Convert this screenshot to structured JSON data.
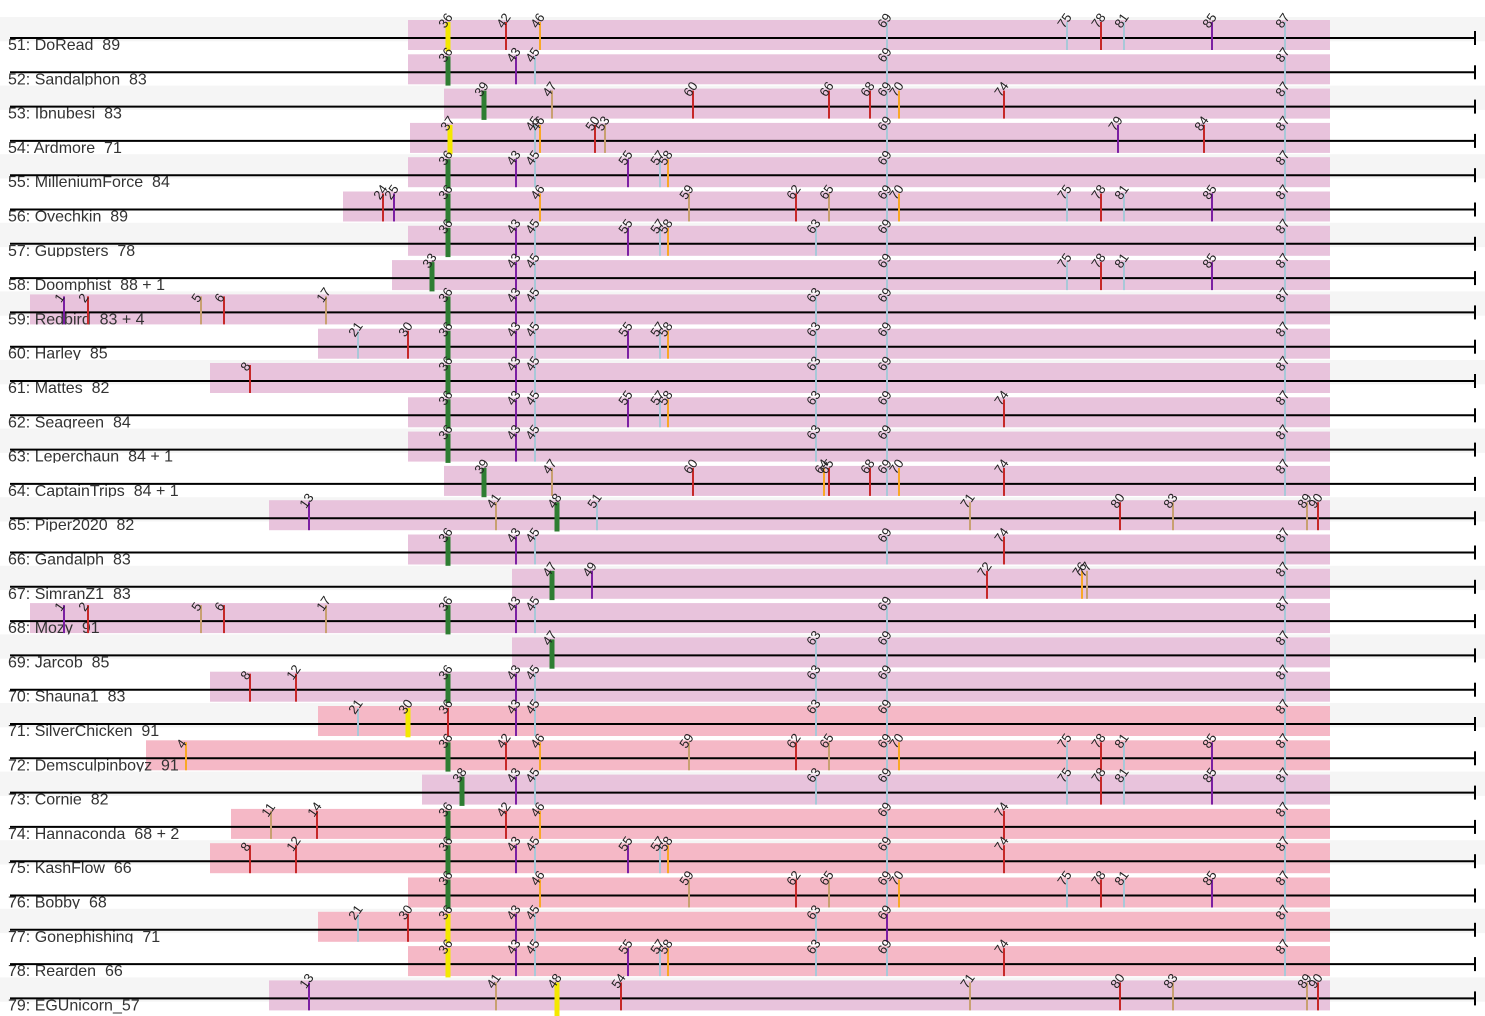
{
  "colors": {
    "stripe_light": "#f5f5f5",
    "stripe_white": "#ffffff",
    "band_pink": "#e8c3dc",
    "band_rose": "#f5b8c6",
    "axis": "#000000",
    "label": "#333333",
    "anchor_green": "#2e7d32",
    "anchor_yellow": "#f4e800",
    "mark_red": "#c62828",
    "mark_purple": "#7b1fa2",
    "mark_orange": "#f9a825",
    "mark_tan": "#c8a070",
    "mark_blue": "#a8c8d8"
  },
  "rows": [
    {
      "label": "51: DoRead_89",
      "band": "pink",
      "anchor": 36,
      "anchor_color": "yellow",
      "marks": [
        [
          36,
          "yellow"
        ],
        [
          42,
          "red"
        ],
        [
          46,
          "orange"
        ],
        [
          69,
          "blue"
        ],
        [
          75,
          "blue"
        ],
        [
          78,
          "red"
        ],
        [
          81,
          "blue"
        ],
        [
          85,
          "purple"
        ],
        [
          87,
          "blue"
        ]
      ]
    },
    {
      "label": "52: Sandalphon_83",
      "band": "pink",
      "anchor": 36,
      "anchor_color": "green",
      "marks": [
        [
          36,
          "green"
        ],
        [
          43,
          "purple"
        ],
        [
          45,
          "blue"
        ],
        [
          69,
          "blue"
        ],
        [
          87,
          "blue"
        ]
      ]
    },
    {
      "label": "53: Ibnubesi_83",
      "band": "pink",
      "anchor": 39,
      "anchor_color": "green",
      "marks": [
        [
          39,
          "green"
        ],
        [
          47,
          "tan"
        ],
        [
          60,
          "red"
        ],
        [
          66,
          "red"
        ],
        [
          68,
          "red"
        ],
        [
          69,
          "blue"
        ],
        [
          70,
          "orange"
        ],
        [
          74,
          "red"
        ],
        [
          87,
          "blue"
        ]
      ]
    },
    {
      "label": "54: Ardmore_71",
      "band": "pink",
      "anchor": 37,
      "anchor_color": "yellow",
      "marks": [
        [
          37,
          "yellow"
        ],
        [
          45,
          "blue"
        ],
        [
          46,
          "orange"
        ],
        [
          50,
          "red"
        ],
        [
          53,
          "tan"
        ],
        [
          69,
          "blue"
        ],
        [
          79,
          "purple"
        ],
        [
          84,
          "red"
        ],
        [
          87,
          "blue"
        ]
      ]
    },
    {
      "label": "55: MilleniumForce_84",
      "band": "pink",
      "anchor": 36,
      "anchor_color": "green",
      "marks": [
        [
          36,
          "green"
        ],
        [
          43,
          "purple"
        ],
        [
          45,
          "blue"
        ],
        [
          55,
          "purple"
        ],
        [
          57,
          "blue"
        ],
        [
          58,
          "orange"
        ],
        [
          69,
          "blue"
        ],
        [
          87,
          "blue"
        ]
      ]
    },
    {
      "label": "56: Ovechkin_89",
      "band": "pink",
      "anchor": 36,
      "anchor_color": "green",
      "marks": [
        [
          24,
          "red"
        ],
        [
          25,
          "purple"
        ],
        [
          36,
          "green"
        ],
        [
          46,
          "orange"
        ],
        [
          59,
          "tan"
        ],
        [
          62,
          "red"
        ],
        [
          65,
          "tan"
        ],
        [
          69,
          "blue"
        ],
        [
          70,
          "orange"
        ],
        [
          75,
          "blue"
        ],
        [
          78,
          "red"
        ],
        [
          81,
          "blue"
        ],
        [
          85,
          "purple"
        ],
        [
          87,
          "blue"
        ]
      ]
    },
    {
      "label": "57: Guppsters_78",
      "band": "pink",
      "anchor": 36,
      "anchor_color": "green",
      "marks": [
        [
          36,
          "green"
        ],
        [
          43,
          "purple"
        ],
        [
          45,
          "blue"
        ],
        [
          55,
          "purple"
        ],
        [
          57,
          "blue"
        ],
        [
          58,
          "orange"
        ],
        [
          63,
          "blue"
        ],
        [
          69,
          "blue"
        ],
        [
          87,
          "blue"
        ]
      ]
    },
    {
      "label": "58: Doomphist_88 + 1",
      "band": "pink",
      "anchor": 33,
      "anchor_color": "green",
      "marks": [
        [
          33,
          "green"
        ],
        [
          43,
          "purple"
        ],
        [
          45,
          "blue"
        ],
        [
          69,
          "blue"
        ],
        [
          75,
          "blue"
        ],
        [
          78,
          "red"
        ],
        [
          81,
          "blue"
        ],
        [
          85,
          "purple"
        ],
        [
          87,
          "blue"
        ]
      ]
    },
    {
      "label": "59: Redbird_83 + 4",
      "band": "pink",
      "anchor": 36,
      "anchor_color": "green",
      "marks": [
        [
          1,
          "purple"
        ],
        [
          2,
          "red"
        ],
        [
          5,
          "tan"
        ],
        [
          6,
          "red"
        ],
        [
          17,
          "tan"
        ],
        [
          36,
          "green"
        ],
        [
          43,
          "purple"
        ],
        [
          45,
          "blue"
        ],
        [
          63,
          "blue"
        ],
        [
          69,
          "blue"
        ],
        [
          87,
          "blue"
        ]
      ]
    },
    {
      "label": "60: Harley_85",
      "band": "pink",
      "anchor": 36,
      "anchor_color": "green",
      "marks": [
        [
          21,
          "blue"
        ],
        [
          30,
          "red"
        ],
        [
          36,
          "green"
        ],
        [
          43,
          "purple"
        ],
        [
          45,
          "blue"
        ],
        [
          55,
          "purple"
        ],
        [
          57,
          "blue"
        ],
        [
          58,
          "orange"
        ],
        [
          63,
          "blue"
        ],
        [
          69,
          "blue"
        ],
        [
          87,
          "blue"
        ]
      ]
    },
    {
      "label": "61: Mattes_82",
      "band": "pink",
      "anchor": 36,
      "anchor_color": "green",
      "marks": [
        [
          8,
          "red"
        ],
        [
          36,
          "green"
        ],
        [
          43,
          "purple"
        ],
        [
          45,
          "blue"
        ],
        [
          63,
          "blue"
        ],
        [
          69,
          "blue"
        ],
        [
          87,
          "blue"
        ]
      ]
    },
    {
      "label": "62: Seagreen_84",
      "band": "pink",
      "anchor": 36,
      "anchor_color": "green",
      "marks": [
        [
          36,
          "green"
        ],
        [
          43,
          "purple"
        ],
        [
          45,
          "blue"
        ],
        [
          55,
          "purple"
        ],
        [
          57,
          "blue"
        ],
        [
          58,
          "orange"
        ],
        [
          63,
          "blue"
        ],
        [
          69,
          "blue"
        ],
        [
          74,
          "red"
        ],
        [
          87,
          "blue"
        ]
      ]
    },
    {
      "label": "63: Leperchaun_84 + 1",
      "band": "pink",
      "anchor": 36,
      "anchor_color": "green",
      "marks": [
        [
          36,
          "green"
        ],
        [
          43,
          "purple"
        ],
        [
          45,
          "blue"
        ],
        [
          63,
          "blue"
        ],
        [
          69,
          "blue"
        ],
        [
          87,
          "blue"
        ]
      ]
    },
    {
      "label": "64: CaptainTrips_84 + 1",
      "band": "pink",
      "anchor": 39,
      "anchor_color": "green",
      "marks": [
        [
          39,
          "green"
        ],
        [
          47,
          "tan"
        ],
        [
          60,
          "red"
        ],
        [
          64,
          "orange"
        ],
        [
          65,
          "red"
        ],
        [
          68,
          "red"
        ],
        [
          69,
          "blue"
        ],
        [
          70,
          "orange"
        ],
        [
          74,
          "red"
        ],
        [
          87,
          "blue"
        ]
      ]
    },
    {
      "label": "65: Piper2020_82",
      "band": "pink",
      "anchor": 48,
      "anchor_color": "green",
      "marks": [
        [
          13,
          "purple"
        ],
        [
          41,
          "tan"
        ],
        [
          48,
          "green"
        ],
        [
          51,
          "blue"
        ],
        [
          71,
          "tan"
        ],
        [
          80,
          "red"
        ],
        [
          83,
          "tan"
        ],
        [
          89,
          "tan"
        ],
        [
          90,
          "red"
        ]
      ]
    },
    {
      "label": "66: Gandalph_83",
      "band": "pink",
      "anchor": 36,
      "anchor_color": "green",
      "marks": [
        [
          36,
          "green"
        ],
        [
          43,
          "purple"
        ],
        [
          45,
          "blue"
        ],
        [
          69,
          "blue"
        ],
        [
          74,
          "red"
        ],
        [
          87,
          "blue"
        ]
      ]
    },
    {
      "label": "67: SimranZ1_83",
      "band": "pink",
      "anchor": 47,
      "anchor_color": "green",
      "marks": [
        [
          47,
          "green"
        ],
        [
          49,
          "purple"
        ],
        [
          72,
          "red"
        ],
        [
          76,
          "orange"
        ],
        [
          77,
          "tan"
        ],
        [
          87,
          "blue"
        ]
      ]
    },
    {
      "label": "68: Mozy_91",
      "band": "pink",
      "anchor": 36,
      "anchor_color": "green",
      "marks": [
        [
          1,
          "purple"
        ],
        [
          2,
          "red"
        ],
        [
          5,
          "tan"
        ],
        [
          6,
          "red"
        ],
        [
          17,
          "tan"
        ],
        [
          36,
          "green"
        ],
        [
          43,
          "purple"
        ],
        [
          45,
          "blue"
        ],
        [
          69,
          "blue"
        ],
        [
          87,
          "blue"
        ]
      ]
    },
    {
      "label": "69: Jarcob_85",
      "band": "pink",
      "anchor": 47,
      "anchor_color": "green",
      "marks": [
        [
          47,
          "green"
        ],
        [
          63,
          "blue"
        ],
        [
          69,
          "blue"
        ],
        [
          87,
          "blue"
        ]
      ]
    },
    {
      "label": "70: Shauna1_83",
      "band": "pink",
      "anchor": 36,
      "anchor_color": "green",
      "marks": [
        [
          8,
          "red"
        ],
        [
          12,
          "red"
        ],
        [
          36,
          "green"
        ],
        [
          43,
          "purple"
        ],
        [
          45,
          "blue"
        ],
        [
          63,
          "blue"
        ],
        [
          69,
          "blue"
        ],
        [
          87,
          "blue"
        ]
      ]
    },
    {
      "label": "71: SilverChicken_91",
      "band": "rose",
      "anchor": 30,
      "anchor_color": "yellow",
      "marks": [
        [
          21,
          "blue"
        ],
        [
          30,
          "yellow"
        ],
        [
          36,
          "red"
        ],
        [
          43,
          "purple"
        ],
        [
          45,
          "blue"
        ],
        [
          63,
          "blue"
        ],
        [
          69,
          "blue"
        ],
        [
          87,
          "blue"
        ]
      ]
    },
    {
      "label": "72: Demsculpinboyz_91",
      "band": "rose",
      "anchor": 36,
      "anchor_color": "green",
      "marks": [
        [
          4,
          "orange"
        ],
        [
          36,
          "green"
        ],
        [
          42,
          "red"
        ],
        [
          46,
          "orange"
        ],
        [
          59,
          "tan"
        ],
        [
          62,
          "red"
        ],
        [
          65,
          "tan"
        ],
        [
          69,
          "blue"
        ],
        [
          70,
          "orange"
        ],
        [
          75,
          "blue"
        ],
        [
          78,
          "red"
        ],
        [
          81,
          "blue"
        ],
        [
          85,
          "purple"
        ],
        [
          87,
          "blue"
        ]
      ]
    },
    {
      "label": "73: Cornie_82",
      "band": "pink",
      "anchor": 38,
      "anchor_color": "green",
      "marks": [
        [
          38,
          "green"
        ],
        [
          43,
          "purple"
        ],
        [
          45,
          "blue"
        ],
        [
          63,
          "blue"
        ],
        [
          69,
          "blue"
        ],
        [
          75,
          "blue"
        ],
        [
          78,
          "red"
        ],
        [
          81,
          "blue"
        ],
        [
          85,
          "purple"
        ],
        [
          87,
          "blue"
        ]
      ]
    },
    {
      "label": "74: Hannaconda_68 + 2",
      "band": "rose",
      "anchor": 36,
      "anchor_color": "green",
      "marks": [
        [
          11,
          "tan"
        ],
        [
          14,
          "red"
        ],
        [
          36,
          "green"
        ],
        [
          42,
          "red"
        ],
        [
          46,
          "orange"
        ],
        [
          69,
          "blue"
        ],
        [
          74,
          "red"
        ],
        [
          87,
          "blue"
        ]
      ]
    },
    {
      "label": "75: KashFlow_66",
      "band": "rose",
      "anchor": 36,
      "anchor_color": "green",
      "marks": [
        [
          8,
          "red"
        ],
        [
          12,
          "red"
        ],
        [
          36,
          "green"
        ],
        [
          43,
          "purple"
        ],
        [
          45,
          "blue"
        ],
        [
          55,
          "purple"
        ],
        [
          57,
          "blue"
        ],
        [
          58,
          "orange"
        ],
        [
          69,
          "blue"
        ],
        [
          74,
          "red"
        ],
        [
          87,
          "blue"
        ]
      ]
    },
    {
      "label": "76: Bobby_68",
      "band": "rose",
      "anchor": 36,
      "anchor_color": "green",
      "marks": [
        [
          36,
          "green"
        ],
        [
          46,
          "orange"
        ],
        [
          59,
          "tan"
        ],
        [
          62,
          "red"
        ],
        [
          65,
          "tan"
        ],
        [
          69,
          "blue"
        ],
        [
          70,
          "orange"
        ],
        [
          75,
          "blue"
        ],
        [
          78,
          "red"
        ],
        [
          81,
          "blue"
        ],
        [
          85,
          "purple"
        ],
        [
          87,
          "blue"
        ]
      ]
    },
    {
      "label": "77: Gonephishing_71",
      "band": "rose",
      "anchor": 36,
      "anchor_color": "yellow",
      "marks": [
        [
          21,
          "blue"
        ],
        [
          30,
          "red"
        ],
        [
          36,
          "yellow"
        ],
        [
          43,
          "purple"
        ],
        [
          45,
          "blue"
        ],
        [
          63,
          "blue"
        ],
        [
          69,
          "purple"
        ],
        [
          87,
          "blue"
        ]
      ]
    },
    {
      "label": "78: Rearden_66",
      "band": "rose",
      "anchor": 36,
      "anchor_color": "yellow",
      "marks": [
        [
          36,
          "yellow"
        ],
        [
          43,
          "purple"
        ],
        [
          45,
          "blue"
        ],
        [
          55,
          "purple"
        ],
        [
          57,
          "blue"
        ],
        [
          58,
          "orange"
        ],
        [
          63,
          "blue"
        ],
        [
          69,
          "blue"
        ],
        [
          74,
          "red"
        ],
        [
          87,
          "blue"
        ]
      ]
    },
    {
      "label": "79: EGUnicorn_57",
      "band": "pink",
      "anchor": 48,
      "anchor_color": "yellow",
      "marks": [
        [
          13,
          "purple"
        ],
        [
          41,
          "tan"
        ],
        [
          48,
          "yellow"
        ],
        [
          54,
          "red"
        ],
        [
          71,
          "tan"
        ],
        [
          80,
          "red"
        ],
        [
          83,
          "tan"
        ],
        [
          89,
          "tan"
        ],
        [
          90,
          "red"
        ]
      ]
    }
  ]
}
